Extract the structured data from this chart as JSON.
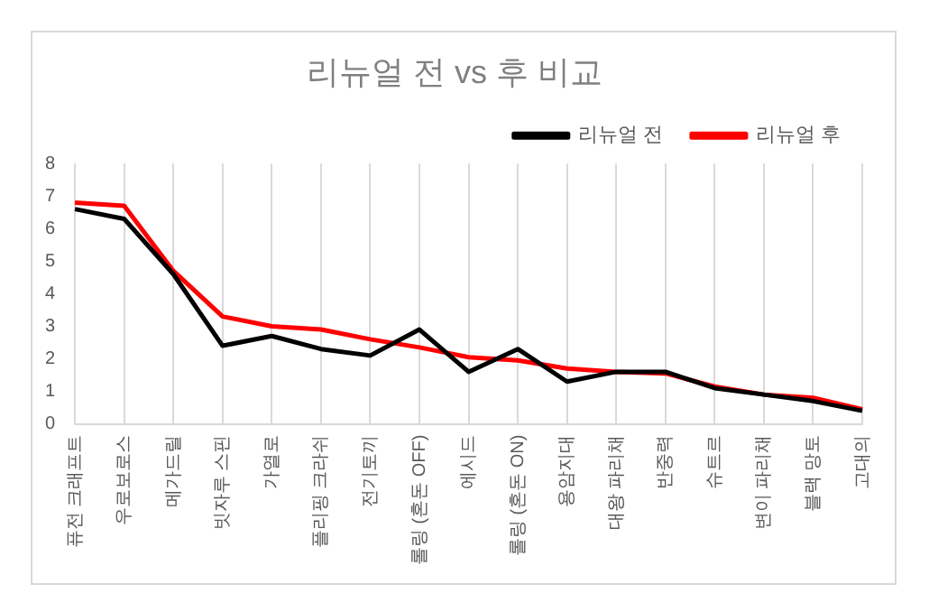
{
  "chart_data": {
    "type": "line",
    "title": "리뉴얼 전 vs 후 비교",
    "categories": [
      "퓨전 크래프트",
      "우로보로스",
      "메가드릴",
      "빗자루 스핀",
      "가열로",
      "플리핑 크라쉬",
      "전기토끼",
      "롤링 (혼돈 OFF)",
      "에시드",
      "롤링 (혼돈 ON)",
      "용암지대",
      "대왕 파리채",
      "반중력",
      "슈트르",
      "변이 파리채",
      "블랙 망토",
      "고대의"
    ],
    "series": [
      {
        "name": "리뉴얼 전",
        "color": "#000000",
        "values": [
          6.6,
          6.3,
          4.6,
          2.4,
          2.7,
          2.3,
          2.1,
          2.9,
          1.6,
          2.3,
          1.3,
          1.6,
          1.6,
          1.1,
          0.9,
          0.7,
          0.4
        ]
      },
      {
        "name": "리뉴얼 후",
        "color": "#ff0000",
        "values": [
          6.8,
          6.7,
          4.7,
          3.3,
          3.0,
          2.9,
          2.6,
          2.35,
          2.05,
          1.95,
          1.7,
          1.6,
          1.55,
          1.15,
          0.9,
          0.8,
          0.45
        ]
      }
    ],
    "ylim": [
      0,
      8
    ],
    "yticks": [
      0,
      1,
      2,
      3,
      4,
      5,
      6,
      7,
      8
    ],
    "grid": "x",
    "legend": "top right",
    "marker": "none",
    "line_style": "solid"
  }
}
